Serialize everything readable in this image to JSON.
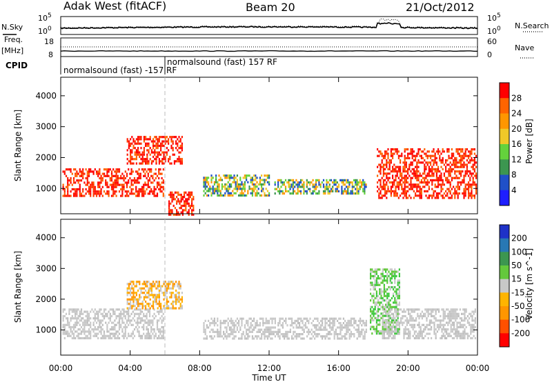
{
  "header": {
    "station": "Adak West (fitACF)",
    "beam": "Beam 20",
    "date": "21/Oct/2012"
  },
  "left_labels": {
    "nsky": "N.Sky",
    "freq": "Freq.",
    "freq_unit": "[MHz]",
    "cpid": "CPID"
  },
  "right_labels": {
    "nsearch": "N.Search",
    "nave": "Nave"
  },
  "noise_axis": {
    "left_top": "10^5",
    "left_bottom": "10^0",
    "right_top": "10^5",
    "right_bottom": "10^0"
  },
  "freq_axis": {
    "left_top": "18",
    "left_bottom": "8",
    "right_top": "60",
    "right_bottom": "0"
  },
  "cpid": {
    "mode_a": "normalsound (fast) -157 RF",
    "mode_b": "normalsound (fast) 157 RF",
    "switch_time_hours": 6.0
  },
  "colors": {
    "red": "#ff0000",
    "grey": "#c8c8c8",
    "green": "#3cc83c",
    "orange": "#ff9600",
    "blue": "#1e46c8"
  },
  "chart_data": [
    {
      "type": "heatmap",
      "panel": "power",
      "ylabel": "Slant Range [km]",
      "colorbar_label": "Power [dB]",
      "colorbar_ticks": [
        "4",
        "8",
        "12",
        "16",
        "20",
        "24",
        "28"
      ],
      "colorbar_colors": [
        "#1e1eff",
        "#2050c8",
        "#3c9650",
        "#64d23c",
        "#f0c828",
        "#ff9600",
        "#ff6400",
        "#ff0000"
      ],
      "x_range_hours": [
        0,
        24
      ],
      "y_range_km": [
        180,
        4600
      ],
      "yticks": [
        "1000",
        "2000",
        "3000",
        "4000"
      ],
      "blobs": [
        {
          "t0": 0.1,
          "t1": 5.9,
          "r0": 780,
          "r1": 1650,
          "level": "high"
        },
        {
          "t0": 3.8,
          "t1": 7.0,
          "r0": 1800,
          "r1": 2700,
          "level": "high"
        },
        {
          "t0": 6.2,
          "t1": 7.6,
          "r0": 180,
          "r1": 900,
          "level": "high"
        },
        {
          "t0": 8.2,
          "t1": 12.0,
          "r0": 750,
          "r1": 1450,
          "level": "mid"
        },
        {
          "t0": 12.3,
          "t1": 17.6,
          "r0": 800,
          "r1": 1300,
          "level": "mid"
        },
        {
          "t0": 18.2,
          "t1": 23.9,
          "r0": 700,
          "r1": 2300,
          "level": "high"
        }
      ]
    },
    {
      "type": "heatmap",
      "panel": "velocity",
      "ylabel": "Slant Range [km]",
      "colorbar_label": "Velocity [m s^-1]",
      "colorbar_ticks": [
        "200",
        "100",
        "50",
        "15",
        "-15",
        "-50",
        "-100",
        "-200"
      ],
      "colorbar_colors": [
        "#1e32c8",
        "#2878b4",
        "#3c9650",
        "#64c83c",
        "#c8c8c8",
        "#ffb400",
        "#ff9600",
        "#ff5000",
        "#ff0000"
      ],
      "x_range_hours": [
        0,
        24
      ],
      "y_range_km": [
        180,
        4600
      ],
      "yticks": [
        "1000",
        "2000",
        "3000",
        "4000"
      ],
      "blobs": [
        {
          "t0": 0.1,
          "t1": 5.9,
          "r0": 700,
          "r1": 1700,
          "level": "grey"
        },
        {
          "t0": 3.8,
          "t1": 7.0,
          "r0": 1700,
          "r1": 2600,
          "level": "orange"
        },
        {
          "t0": 8.2,
          "t1": 17.6,
          "r0": 750,
          "r1": 1400,
          "level": "grey"
        },
        {
          "t0": 17.8,
          "t1": 19.5,
          "r0": 900,
          "r1": 3000,
          "level": "green"
        },
        {
          "t0": 18.5,
          "t1": 23.9,
          "r0": 700,
          "r1": 1700,
          "level": "grey"
        }
      ]
    }
  ],
  "x_axis": {
    "label": "Time UT",
    "ticks": [
      {
        "h": 0,
        "label": "00:00"
      },
      {
        "h": 4,
        "label": "04:00"
      },
      {
        "h": 8,
        "label": "08:00"
      },
      {
        "h": 12,
        "label": "12:00"
      },
      {
        "h": 16,
        "label": "16:00"
      },
      {
        "h": 20,
        "label": "20:00"
      },
      {
        "h": 24,
        "label": "00:00"
      }
    ]
  }
}
